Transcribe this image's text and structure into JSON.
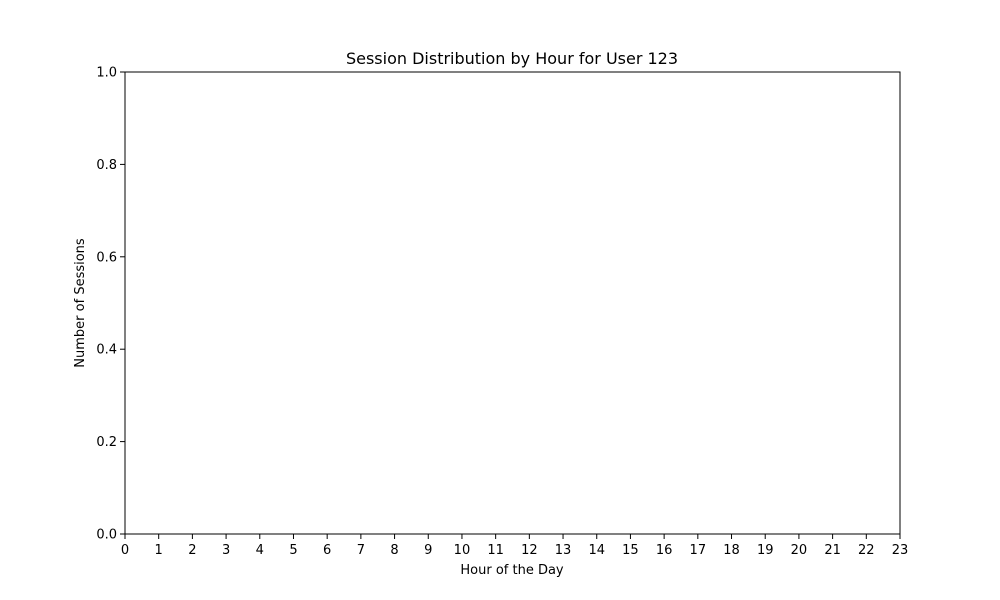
{
  "chart_data": {
    "type": "bar",
    "title": "Session Distribution by Hour for User 123",
    "xlabel": "Hour of the Day",
    "ylabel": "Number of Sessions",
    "x_ticks": [
      "0",
      "1",
      "2",
      "3",
      "4",
      "5",
      "6",
      "7",
      "8",
      "9",
      "10",
      "11",
      "12",
      "13",
      "14",
      "15",
      "16",
      "17",
      "18",
      "19",
      "20",
      "21",
      "22",
      "23"
    ],
    "x_range": [
      0,
      23
    ],
    "y_ticks": [
      "0.0",
      "0.2",
      "0.4",
      "0.6",
      "0.8",
      "1.0"
    ],
    "ylim": [
      0,
      1
    ],
    "categories": [],
    "values": [],
    "grid": false,
    "legend": "none"
  }
}
